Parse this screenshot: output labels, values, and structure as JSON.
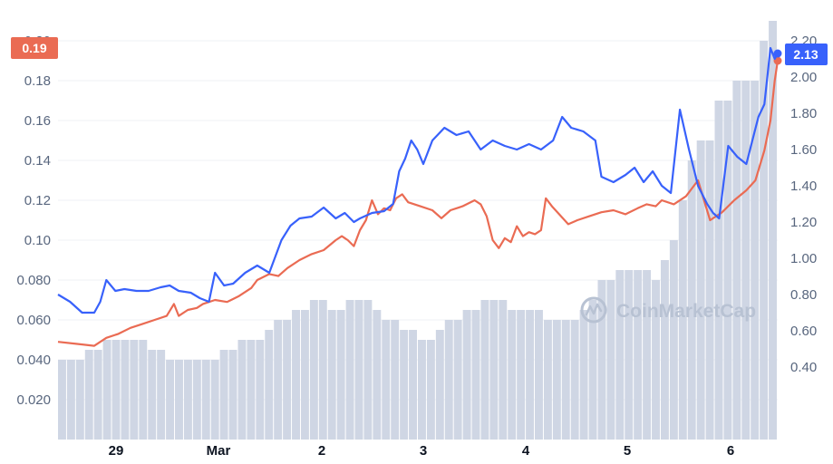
{
  "watermark": {
    "brand": "CoinMarketCap",
    "icon": "coinmarketcap-logo-icon"
  },
  "colors": {
    "left_series": "#ea6b53",
    "right_series": "#3861fb",
    "volume": "#cfd6e4",
    "grid": "#eff2f5",
    "text": "#58667e"
  },
  "chart_data": {
    "type": "line",
    "title": "",
    "xlabel": "",
    "ylabel": "",
    "x_ticks": [
      "29",
      "Mar",
      "2",
      "3",
      "4",
      "5",
      "6"
    ],
    "y_left": {
      "ticks": [
        "0.020",
        "0.040",
        "0.060",
        "0.080",
        "0.10",
        "0.12",
        "0.14",
        "0.16",
        "0.18",
        "0.20"
      ],
      "range": [
        0.0,
        0.2
      ]
    },
    "y_right": {
      "ticks": [
        "0.40",
        "0.60",
        "0.80",
        "1.00",
        "1.20",
        "1.40",
        "1.60",
        "1.80",
        "2.00",
        "2.20"
      ],
      "range": [
        0.0,
        2.2
      ]
    },
    "last_left_badge": "0.19",
    "last_right_badge": "2.13",
    "grid": true,
    "legend": "none",
    "series": [
      {
        "axis": "left",
        "color": "#ea6b53",
        "points": [
          [
            0.0,
            0.049
          ],
          [
            0.03,
            0.048
          ],
          [
            0.06,
            0.047
          ],
          [
            0.08,
            0.051
          ],
          [
            0.1,
            0.053
          ],
          [
            0.12,
            0.056
          ],
          [
            0.14,
            0.058
          ],
          [
            0.16,
            0.06
          ],
          [
            0.18,
            0.062
          ],
          [
            0.192,
            0.068
          ],
          [
            0.2,
            0.062
          ],
          [
            0.215,
            0.065
          ],
          [
            0.23,
            0.066
          ],
          [
            0.24,
            0.068
          ],
          [
            0.26,
            0.07
          ],
          [
            0.28,
            0.069
          ],
          [
            0.3,
            0.072
          ],
          [
            0.32,
            0.076
          ],
          [
            0.33,
            0.08
          ],
          [
            0.35,
            0.083
          ],
          [
            0.365,
            0.082
          ],
          [
            0.38,
            0.086
          ],
          [
            0.4,
            0.09
          ],
          [
            0.42,
            0.093
          ],
          [
            0.44,
            0.095
          ],
          [
            0.46,
            0.1
          ],
          [
            0.47,
            0.102
          ],
          [
            0.48,
            0.1
          ],
          [
            0.49,
            0.097
          ],
          [
            0.5,
            0.105
          ],
          [
            0.51,
            0.11
          ],
          [
            0.52,
            0.12
          ],
          [
            0.53,
            0.113
          ],
          [
            0.54,
            0.116
          ],
          [
            0.55,
            0.115
          ],
          [
            0.56,
            0.121
          ],
          [
            0.57,
            0.123
          ],
          [
            0.58,
            0.119
          ],
          [
            0.6,
            0.117
          ],
          [
            0.62,
            0.115
          ],
          [
            0.635,
            0.111
          ],
          [
            0.65,
            0.115
          ],
          [
            0.67,
            0.117
          ],
          [
            0.69,
            0.12
          ],
          [
            0.7,
            0.118
          ],
          [
            0.71,
            0.112
          ],
          [
            0.72,
            0.1
          ],
          [
            0.73,
            0.096
          ],
          [
            0.74,
            0.101
          ],
          [
            0.75,
            0.099
          ],
          [
            0.76,
            0.107
          ],
          [
            0.77,
            0.102
          ],
          [
            0.78,
            0.104
          ],
          [
            0.79,
            0.103
          ],
          [
            0.8,
            0.105
          ],
          [
            0.808,
            0.121
          ],
          [
            0.818,
            0.117
          ],
          [
            0.83,
            0.113
          ],
          [
            0.845,
            0.108
          ],
          [
            0.86,
            0.11
          ],
          [
            0.88,
            0.112
          ],
          [
            0.9,
            0.114
          ],
          [
            0.92,
            0.115
          ],
          [
            0.94,
            0.113
          ],
          [
            0.96,
            0.116
          ],
          [
            0.975,
            0.118
          ],
          [
            0.99,
            0.117
          ],
          [
            1.0,
            0.12
          ],
          [
            1.02,
            0.118
          ],
          [
            1.04,
            0.122
          ],
          [
            1.06,
            0.13
          ],
          [
            1.07,
            0.12
          ],
          [
            1.08,
            0.11
          ],
          [
            1.1,
            0.114
          ],
          [
            1.12,
            0.12
          ],
          [
            1.14,
            0.125
          ],
          [
            1.155,
            0.13
          ],
          [
            1.17,
            0.145
          ],
          [
            1.18,
            0.16
          ],
          [
            1.187,
            0.18
          ],
          [
            1.192,
            0.19
          ]
        ]
      },
      {
        "axis": "right",
        "color": "#3861fb",
        "points": [
          [
            0.0,
            0.8
          ],
          [
            0.02,
            0.76
          ],
          [
            0.04,
            0.7
          ],
          [
            0.06,
            0.7
          ],
          [
            0.07,
            0.76
          ],
          [
            0.08,
            0.88
          ],
          [
            0.095,
            0.82
          ],
          [
            0.11,
            0.83
          ],
          [
            0.13,
            0.82
          ],
          [
            0.15,
            0.82
          ],
          [
            0.17,
            0.84
          ],
          [
            0.185,
            0.85
          ],
          [
            0.2,
            0.82
          ],
          [
            0.22,
            0.81
          ],
          [
            0.235,
            0.78
          ],
          [
            0.25,
            0.76
          ],
          [
            0.26,
            0.92
          ],
          [
            0.275,
            0.85
          ],
          [
            0.29,
            0.86
          ],
          [
            0.31,
            0.92
          ],
          [
            0.33,
            0.96
          ],
          [
            0.35,
            0.92
          ],
          [
            0.37,
            1.1
          ],
          [
            0.385,
            1.18
          ],
          [
            0.4,
            1.22
          ],
          [
            0.42,
            1.23
          ],
          [
            0.44,
            1.28
          ],
          [
            0.46,
            1.22
          ],
          [
            0.475,
            1.25
          ],
          [
            0.49,
            1.2
          ],
          [
            0.5,
            1.22
          ],
          [
            0.52,
            1.25
          ],
          [
            0.54,
            1.26
          ],
          [
            0.555,
            1.3
          ],
          [
            0.565,
            1.48
          ],
          [
            0.575,
            1.55
          ],
          [
            0.585,
            1.65
          ],
          [
            0.595,
            1.6
          ],
          [
            0.605,
            1.52
          ],
          [
            0.62,
            1.65
          ],
          [
            0.64,
            1.72
          ],
          [
            0.66,
            1.68
          ],
          [
            0.68,
            1.7
          ],
          [
            0.7,
            1.6
          ],
          [
            0.72,
            1.65
          ],
          [
            0.74,
            1.62
          ],
          [
            0.76,
            1.6
          ],
          [
            0.78,
            1.63
          ],
          [
            0.8,
            1.6
          ],
          [
            0.82,
            1.65
          ],
          [
            0.835,
            1.78
          ],
          [
            0.85,
            1.72
          ],
          [
            0.87,
            1.7
          ],
          [
            0.89,
            1.65
          ],
          [
            0.9,
            1.45
          ],
          [
            0.92,
            1.42
          ],
          [
            0.94,
            1.46
          ],
          [
            0.955,
            1.5
          ],
          [
            0.97,
            1.42
          ],
          [
            0.985,
            1.48
          ],
          [
            1.0,
            1.4
          ],
          [
            1.015,
            1.36
          ],
          [
            1.03,
            1.82
          ],
          [
            1.045,
            1.6
          ],
          [
            1.06,
            1.4
          ],
          [
            1.075,
            1.3
          ],
          [
            1.085,
            1.25
          ],
          [
            1.095,
            1.22
          ],
          [
            1.11,
            1.62
          ],
          [
            1.125,
            1.56
          ],
          [
            1.14,
            1.52
          ],
          [
            1.16,
            1.78
          ],
          [
            1.17,
            1.85
          ],
          [
            1.18,
            2.16
          ],
          [
            1.187,
            2.1
          ],
          [
            1.192,
            2.13
          ]
        ]
      }
    ],
    "volume": [
      0.04,
      0.04,
      0.04,
      0.045,
      0.045,
      0.05,
      0.05,
      0.05,
      0.05,
      0.05,
      0.045,
      0.045,
      0.04,
      0.04,
      0.04,
      0.04,
      0.04,
      0.04,
      0.045,
      0.045,
      0.05,
      0.05,
      0.05,
      0.055,
      0.06,
      0.06,
      0.065,
      0.065,
      0.07,
      0.07,
      0.065,
      0.065,
      0.07,
      0.07,
      0.07,
      0.065,
      0.06,
      0.06,
      0.055,
      0.055,
      0.05,
      0.05,
      0.055,
      0.06,
      0.06,
      0.065,
      0.065,
      0.07,
      0.07,
      0.07,
      0.065,
      0.065,
      0.065,
      0.065,
      0.06,
      0.06,
      0.06,
      0.06,
      0.065,
      0.07,
      0.08,
      0.08,
      0.085,
      0.085,
      0.085,
      0.085,
      0.08,
      0.09,
      0.1,
      0.12,
      0.14,
      0.15,
      0.15,
      0.17,
      0.17,
      0.18,
      0.18,
      0.18,
      0.2,
      0.21
    ]
  }
}
